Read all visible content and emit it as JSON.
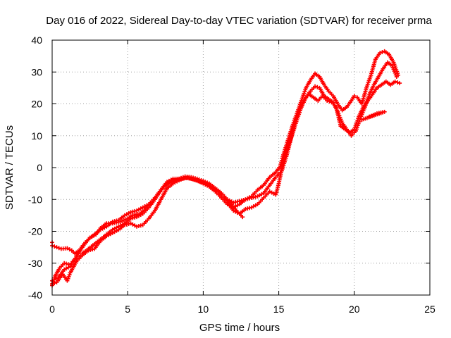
{
  "chart_data": {
    "type": "scatter",
    "title": "Day 016 of 2022, Sidereal Day-to-day VTEC variation (SDTVAR) for receiver prma",
    "xlabel": "GPS time / hours",
    "ylabel": "SDTVAR / TECUs",
    "xlim": [
      0,
      25
    ],
    "ylim": [
      -40,
      40
    ],
    "xticks": [
      0,
      5,
      10,
      15,
      20,
      25
    ],
    "yticks": [
      -40,
      -30,
      -20,
      -10,
      0,
      10,
      20,
      30,
      40
    ],
    "grid": true,
    "marker": "plus",
    "color": "#ff0000",
    "series": [
      {
        "values": [
          [
            0.0,
            -23.5
          ],
          [
            0.0,
            -24.5
          ],
          [
            0.3,
            -25.0
          ],
          [
            0.6,
            -25.5
          ],
          [
            1.0,
            -25.3
          ],
          [
            1.3,
            -26.0
          ],
          [
            1.5,
            -27.0
          ],
          [
            1.8,
            -26.0
          ],
          [
            2.1,
            -24.0
          ],
          [
            2.5,
            -22.0
          ],
          [
            2.9,
            -21.0
          ],
          [
            3.2,
            -19.0
          ],
          [
            3.6,
            -17.5
          ],
          [
            4.0,
            -17.5
          ],
          [
            4.5,
            -17.0
          ],
          [
            5.0,
            -16.0
          ],
          [
            5.3,
            -15.0
          ],
          [
            5.8,
            -14.5
          ],
          [
            6.2,
            -13.0
          ],
          [
            6.6,
            -11.0
          ],
          [
            7.0,
            -8.5
          ],
          [
            7.4,
            -6.0
          ],
          [
            7.8,
            -4.5
          ],
          [
            8.2,
            -4.0
          ],
          [
            8.6,
            -3.5
          ],
          [
            9.0,
            -3.2
          ],
          [
            9.4,
            -3.8
          ],
          [
            9.8,
            -4.5
          ],
          [
            10.2,
            -5.0
          ],
          [
            10.6,
            -6.5
          ],
          [
            11.0,
            -7.5
          ],
          [
            11.4,
            -9.5
          ],
          [
            11.8,
            -11.0
          ],
          [
            12.2,
            -13.5
          ],
          [
            12.6,
            -15.5
          ]
        ]
      },
      {
        "values": [
          [
            0.0,
            -37.0
          ],
          [
            0.2,
            -34.0
          ],
          [
            0.5,
            -31.5
          ],
          [
            0.8,
            -30.0
          ],
          [
            1.2,
            -30.5
          ],
          [
            1.6,
            -28.0
          ],
          [
            2.0,
            -25.0
          ],
          [
            2.4,
            -22.5
          ],
          [
            2.8,
            -21.0
          ],
          [
            3.2,
            -19.5
          ],
          [
            3.6,
            -18.5
          ],
          [
            4.0,
            -17.0
          ],
          [
            4.4,
            -16.5
          ],
          [
            4.8,
            -15.0
          ],
          [
            5.2,
            -14.0
          ],
          [
            5.6,
            -13.5
          ],
          [
            6.0,
            -12.5
          ],
          [
            6.4,
            -11.5
          ],
          [
            6.8,
            -9.5
          ],
          [
            7.2,
            -7.0
          ],
          [
            7.6,
            -4.5
          ],
          [
            8.0,
            -3.5
          ],
          [
            8.4,
            -3.5
          ],
          [
            8.8,
            -2.8
          ],
          [
            9.2,
            -3.0
          ],
          [
            9.6,
            -3.5
          ],
          [
            10.0,
            -4.2
          ],
          [
            10.4,
            -5.0
          ],
          [
            10.8,
            -6.5
          ],
          [
            11.2,
            -8.0
          ],
          [
            11.6,
            -10.0
          ],
          [
            12.0,
            -11.0
          ],
          [
            12.4,
            -10.5
          ],
          [
            12.8,
            -10.0
          ],
          [
            13.2,
            -9.0
          ],
          [
            13.6,
            -7.0
          ],
          [
            14.0,
            -5.5
          ],
          [
            14.4,
            -3.0
          ],
          [
            14.8,
            -1.5
          ],
          [
            15.1,
            0.5
          ],
          [
            15.3,
            4.0
          ],
          [
            15.6,
            8.5
          ],
          [
            15.9,
            13.0
          ],
          [
            16.2,
            17.0
          ],
          [
            16.5,
            21.0
          ],
          [
            16.8,
            25.0
          ],
          [
            17.1,
            27.5
          ],
          [
            17.4,
            29.5
          ],
          [
            17.7,
            28.5
          ],
          [
            18.0,
            26.0
          ],
          [
            18.3,
            24.0
          ],
          [
            18.6,
            22.5
          ],
          [
            18.9,
            20.0
          ],
          [
            19.2,
            18.0
          ],
          [
            19.5,
            19.0
          ],
          [
            19.8,
            21.0
          ],
          [
            20.0,
            22.5
          ],
          [
            20.2,
            22.0
          ],
          [
            20.5,
            20.0
          ],
          [
            20.8,
            25.0
          ],
          [
            21.1,
            29.0
          ],
          [
            21.4,
            34.0
          ],
          [
            21.7,
            36.0
          ],
          [
            22.0,
            36.5
          ],
          [
            22.3,
            35.5
          ],
          [
            22.6,
            33.0
          ],
          [
            22.9,
            29.0
          ]
        ]
      },
      {
        "values": [
          [
            0.0,
            -36.5
          ],
          [
            0.3,
            -36.0
          ],
          [
            0.7,
            -33.5
          ],
          [
            1.0,
            -35.5
          ],
          [
            1.2,
            -33.0
          ],
          [
            1.6,
            -29.5
          ],
          [
            2.0,
            -27.5
          ],
          [
            2.4,
            -26.0
          ],
          [
            2.8,
            -25.5
          ],
          [
            3.2,
            -23.0
          ],
          [
            3.6,
            -21.5
          ],
          [
            4.0,
            -20.5
          ],
          [
            4.4,
            -19.5
          ],
          [
            4.8,
            -18.0
          ],
          [
            5.2,
            -17.5
          ],
          [
            5.6,
            -18.5
          ],
          [
            6.0,
            -18.0
          ],
          [
            6.4,
            -16.0
          ],
          [
            6.8,
            -13.5
          ],
          [
            7.2,
            -10.0
          ],
          [
            7.6,
            -6.5
          ],
          [
            8.0,
            -5.0
          ],
          [
            8.4,
            -4.0
          ],
          [
            8.8,
            -3.2
          ],
          [
            9.2,
            -3.5
          ],
          [
            9.6,
            -4.0
          ],
          [
            10.0,
            -4.5
          ],
          [
            10.4,
            -5.5
          ],
          [
            10.8,
            -7.0
          ],
          [
            11.2,
            -9.0
          ],
          [
            11.6,
            -11.0
          ],
          [
            12.0,
            -13.5
          ],
          [
            12.4,
            -14.5
          ],
          [
            12.8,
            -13.0
          ],
          [
            13.2,
            -12.5
          ],
          [
            13.6,
            -11.5
          ],
          [
            14.0,
            -9.5
          ],
          [
            14.4,
            -7.5
          ],
          [
            14.8,
            -8.5
          ],
          [
            15.0,
            -5.0
          ],
          [
            15.3,
            2.0
          ],
          [
            15.6,
            6.5
          ],
          [
            15.9,
            10.5
          ],
          [
            16.2,
            15.0
          ],
          [
            16.5,
            19.0
          ],
          [
            16.8,
            22.0
          ],
          [
            17.1,
            24.0
          ],
          [
            17.4,
            25.5
          ],
          [
            17.7,
            25.0
          ],
          [
            18.0,
            22.5
          ],
          [
            18.3,
            21.5
          ],
          [
            18.6,
            20.5
          ],
          [
            18.9,
            17.5
          ],
          [
            19.2,
            14.0
          ],
          [
            19.5,
            12.0
          ],
          [
            19.8,
            10.0
          ],
          [
            20.1,
            11.5
          ],
          [
            20.4,
            15.5
          ],
          [
            20.7,
            19.0
          ],
          [
            21.0,
            23.0
          ],
          [
            21.3,
            26.0
          ],
          [
            21.6,
            28.5
          ],
          [
            21.9,
            31.0
          ],
          [
            22.2,
            33.0
          ],
          [
            22.5,
            32.0
          ],
          [
            22.8,
            28.5
          ]
        ]
      },
      {
        "values": [
          [
            0.0,
            -35.5
          ],
          [
            0.4,
            -34.5
          ],
          [
            0.8,
            -32.0
          ],
          [
            1.2,
            -31.0
          ],
          [
            1.6,
            -29.0
          ],
          [
            2.0,
            -27.0
          ],
          [
            2.4,
            -25.5
          ],
          [
            2.8,
            -24.0
          ],
          [
            3.2,
            -22.5
          ],
          [
            3.6,
            -21.0
          ],
          [
            4.0,
            -19.5
          ],
          [
            4.4,
            -18.5
          ],
          [
            4.8,
            -17.5
          ],
          [
            5.2,
            -16.0
          ],
          [
            5.6,
            -15.5
          ],
          [
            6.0,
            -14.5
          ],
          [
            6.4,
            -12.5
          ],
          [
            6.8,
            -10.0
          ],
          [
            7.2,
            -7.0
          ],
          [
            7.6,
            -5.0
          ],
          [
            8.0,
            -4.0
          ],
          [
            8.4,
            -3.5
          ],
          [
            8.8,
            -3.0
          ],
          [
            9.2,
            -3.3
          ],
          [
            9.6,
            -4.0
          ],
          [
            10.0,
            -5.0
          ],
          [
            10.4,
            -6.0
          ],
          [
            10.8,
            -7.5
          ],
          [
            11.2,
            -9.5
          ],
          [
            11.6,
            -11.5
          ],
          [
            12.0,
            -12.5
          ],
          [
            12.4,
            -11.5
          ],
          [
            12.8,
            -10.0
          ],
          [
            13.2,
            -9.5
          ],
          [
            13.6,
            -9.0
          ],
          [
            14.0,
            -8.0
          ],
          [
            14.4,
            -5.5
          ],
          [
            14.8,
            -3.0
          ],
          [
            15.2,
            -1.0
          ],
          [
            15.5,
            3.5
          ],
          [
            15.8,
            9.0
          ],
          [
            16.1,
            14.5
          ],
          [
            16.4,
            18.5
          ],
          [
            16.7,
            21.5
          ],
          [
            17.0,
            23.0
          ],
          [
            17.3,
            22.0
          ],
          [
            17.6,
            21.0
          ],
          [
            17.9,
            22.5
          ],
          [
            18.2,
            21.0
          ],
          [
            18.5,
            20.5
          ],
          [
            18.8,
            19.0
          ],
          [
            19.1,
            13.0
          ],
          [
            19.4,
            12.0
          ],
          [
            19.7,
            11.0
          ],
          [
            20.0,
            12.0
          ],
          [
            20.3,
            16.0
          ],
          [
            20.6,
            19.0
          ],
          [
            20.9,
            21.0
          ],
          [
            21.2,
            23.0
          ],
          [
            21.5,
            25.0
          ],
          [
            21.8,
            26.0
          ],
          [
            22.1,
            27.0
          ],
          [
            22.4,
            26.0
          ],
          [
            22.7,
            27.0
          ],
          [
            23.0,
            26.5
          ],
          [
            21.0,
            16.0
          ],
          [
            21.5,
            17.0
          ],
          [
            22.0,
            17.5
          ],
          [
            20.5,
            15.0
          ]
        ]
      }
    ]
  }
}
